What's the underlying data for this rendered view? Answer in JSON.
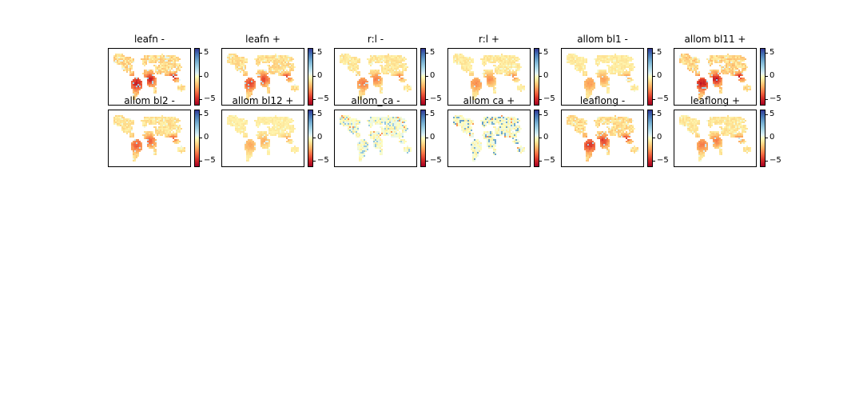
{
  "chart_data": {
    "type": "heatmap",
    "layout": {
      "rows": 2,
      "cols": 6
    },
    "colormap": "RdYlBu",
    "colorbar_ticks": [
      "5",
      "0",
      "−5"
    ],
    "colorbar_tick_values": [
      5,
      0,
      -5
    ],
    "colorbar_range": [
      -6,
      6
    ],
    "panels": [
      {
        "title": "leafn -",
        "sign": -1,
        "strength": 0.7
      },
      {
        "title": "leafn +",
        "sign": -1,
        "strength": 0.55
      },
      {
        "title": "r:l -",
        "sign": -1,
        "strength": 0.35
      },
      {
        "title": "r:l +",
        "sign": -1,
        "strength": 0.3
      },
      {
        "title": "allom bl1 -",
        "sign": -1,
        "strength": 0.25
      },
      {
        "title": "allom bl11 +",
        "sign": -1,
        "strength": 0.75
      },
      {
        "title": "allom bl2 -",
        "sign": -1,
        "strength": 0.45
      },
      {
        "title": "allom bl12 +",
        "sign": -1,
        "strength": 0.2
      },
      {
        "title": "allom_ca -",
        "sign": 1,
        "strength": 0.2
      },
      {
        "title": "allom ca +",
        "sign": 1,
        "strength": 0.35
      },
      {
        "title": "leaflong -",
        "sign": -1,
        "strength": 0.6
      },
      {
        "title": "leaflong +",
        "sign": -1,
        "strength": 0.35
      }
    ]
  }
}
